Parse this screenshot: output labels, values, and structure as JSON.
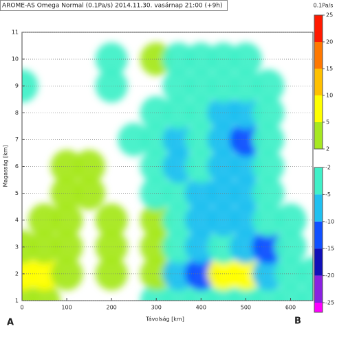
{
  "chart_data": {
    "type": "contour",
    "title": "AROME-AS Omega Normal (0.1Pa/s) 2014.11.30. vasárnap 21:00 (+9h)",
    "xlabel": "Távolság [km]",
    "ylabel": "Magasság [km]",
    "start_label": "A",
    "end_label": "B",
    "xlim": [
      0,
      650
    ],
    "ylim": [
      1,
      11
    ],
    "xticks": [
      0,
      100,
      200,
      300,
      400,
      500,
      600
    ],
    "yticks": [
      1,
      2,
      3,
      4,
      5,
      6,
      7,
      8,
      9,
      10,
      11
    ],
    "grid": true,
    "x": [
      0,
      50,
      100,
      150,
      200,
      250,
      300,
      350,
      400,
      450,
      500,
      550,
      600,
      650
    ],
    "y": [
      1,
      2,
      3,
      4,
      5,
      6,
      7,
      8,
      9,
      10,
      11
    ],
    "z": [
      [
        3,
        2,
        0,
        0,
        0,
        0,
        -2,
        -3,
        -3,
        -3,
        -3,
        -3,
        -3,
        -2
      ],
      [
        6,
        5,
        3,
        0,
        3,
        0,
        2,
        -5,
        -12,
        8,
        6,
        -5,
        -4,
        -3
      ],
      [
        3,
        3,
        2,
        0,
        2,
        0,
        3,
        -4,
        -5,
        -3,
        -6,
        -10,
        -3,
        0
      ],
      [
        0,
        2,
        3,
        0,
        3,
        0,
        2,
        -3,
        -5,
        -6,
        -5,
        -4,
        -2,
        0
      ],
      [
        0,
        0,
        4,
        3,
        0,
        0,
        -2,
        -4,
        -5,
        -6,
        -5,
        -3,
        0,
        0
      ],
      [
        0,
        0,
        3,
        2,
        0,
        0,
        -3,
        -5,
        -4,
        -6,
        -5,
        -2,
        0,
        0
      ],
      [
        0,
        0,
        0,
        0,
        0,
        -2,
        -2,
        -5,
        -3,
        -5,
        -12,
        -2,
        0,
        0
      ],
      [
        0,
        0,
        0,
        0,
        0,
        0,
        -2,
        -3,
        -3,
        -5,
        -6,
        -3,
        0,
        0
      ],
      [
        -2,
        0,
        0,
        0,
        -2,
        0,
        0,
        -2,
        -3,
        -3,
        -4,
        -2,
        0,
        0
      ],
      [
        0,
        0,
        0,
        0,
        -2,
        0,
        3,
        -2,
        -2,
        -2,
        -2,
        0,
        0,
        0
      ],
      [
        0,
        0,
        0,
        0,
        0,
        0,
        0,
        0,
        0,
        0,
        0,
        0,
        0,
        0
      ]
    ],
    "colorbar": {
      "label": "0.1Pa/s",
      "positive": {
        "levels": [
          2,
          5,
          10,
          15,
          20,
          25
        ],
        "colors": [
          "#a6e820",
          "#ffff00",
          "#ffc000",
          "#ff7800",
          "#ff1a00"
        ]
      },
      "negative": {
        "levels": [
          -2,
          -5,
          -10,
          -15,
          -20,
          -25
        ],
        "colors": [
          "#40f0c8",
          "#20c0f0",
          "#1050ff",
          "#1010b8",
          "#8a20e0",
          "#ff00ff"
        ]
      }
    }
  }
}
